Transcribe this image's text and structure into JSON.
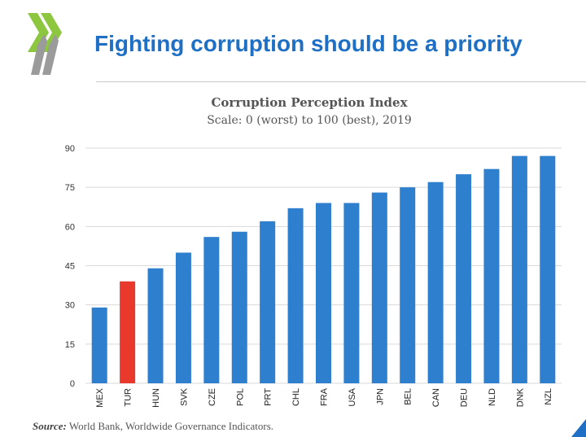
{
  "slide": {
    "title": "Fighting corruption should be a priority",
    "source_label": "Source:",
    "source_text": " World Bank, Worldwide Governance Indicators."
  },
  "colors": {
    "title": "#1f6fc5",
    "bar": "#2f7fcf",
    "highlight_bar": "#e8392c",
    "logo_green": "#8dc63f",
    "logo_gray": "#9b9b9b",
    "grid": "#d9d9d9"
  },
  "icons": {
    "logo": "oecd-chevron-logo",
    "corner": "corner-triangle-icon"
  },
  "chart_data": {
    "type": "bar",
    "title": "Corruption Perception Index",
    "subtitle": "Scale: 0 (worst) to 100 (best), 2019",
    "categories": [
      "MEX",
      "TUR",
      "HUN",
      "SVK",
      "CZE",
      "POL",
      "PRT",
      "CHL",
      "FRA",
      "USA",
      "JPN",
      "BEL",
      "CAN",
      "DEU",
      "NLD",
      "DNK",
      "NZL"
    ],
    "values": [
      29,
      39,
      44,
      50,
      56,
      58,
      62,
      67,
      69,
      69,
      73,
      75,
      77,
      80,
      82,
      87,
      87
    ],
    "highlight": "TUR",
    "ylim": [
      0,
      90
    ],
    "yticks": [
      0,
      15,
      30,
      45,
      60,
      75,
      90
    ],
    "grid": true,
    "xlabel": "",
    "ylabel": ""
  }
}
